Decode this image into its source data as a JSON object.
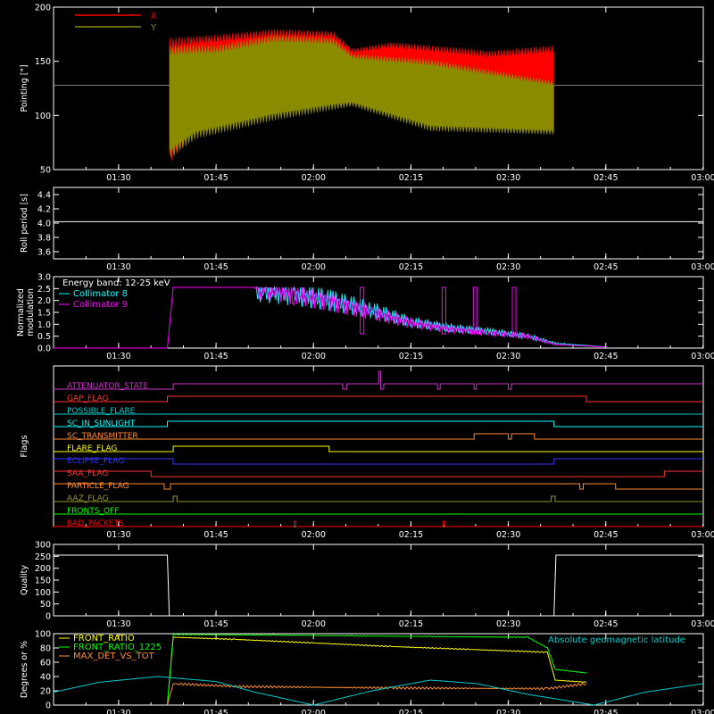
{
  "chart_data": [
    {
      "type": "line",
      "ylabel": "Pointing [\"]",
      "ylim": [
        50,
        200
      ],
      "yticks": [
        "50",
        "100",
        "150",
        "200"
      ],
      "x_range": [
        "01:20",
        "03:00"
      ],
      "data_span": [
        "01:38",
        "02:37"
      ],
      "reference_level": 128,
      "series": [
        {
          "name": "X",
          "color": "#ff0000",
          "upper_envelope": [
            [
              1.63,
              172
            ],
            [
              1.75,
              175
            ],
            [
              1.9,
              180
            ],
            [
              2.05,
              178
            ],
            [
              2.1,
              162
            ],
            [
              2.2,
              168
            ],
            [
              2.3,
              165
            ],
            [
              2.4,
              162
            ],
            [
              2.45,
              160
            ],
            [
              2.617,
              165
            ]
          ],
          "lower_envelope": [
            [
              1.63,
              55
            ],
            [
              1.7,
              88
            ],
            [
              1.9,
              105
            ],
            [
              2.1,
              115
            ],
            [
              2.3,
              98
            ],
            [
              2.45,
              88
            ],
            [
              2.617,
              90
            ]
          ]
        },
        {
          "name": "Y",
          "color": "#8b8b00",
          "upper_envelope": [
            [
              1.63,
              165
            ],
            [
              1.75,
              165
            ],
            [
              1.9,
              175
            ],
            [
              2.05,
              172
            ],
            [
              2.1,
              157
            ],
            [
              2.3,
              152
            ],
            [
              2.617,
              132
            ]
          ],
          "lower_envelope": [
            [
              1.63,
              60
            ],
            [
              1.7,
              78
            ],
            [
              1.9,
              95
            ],
            [
              2.1,
              108
            ],
            [
              2.3,
              85
            ],
            [
              2.617,
              82
            ]
          ]
        }
      ]
    },
    {
      "type": "line",
      "ylabel": "Roll period [s]",
      "ylim": [
        3.5,
        4.5
      ],
      "yticks": [
        "3.6",
        "3.8",
        "4.0",
        "4.2",
        "4.4"
      ],
      "series": [
        {
          "name": "",
          "color": "#ffffff",
          "points": [
            [
              1.333,
              4.02
            ],
            [
              3.0,
              4.02
            ]
          ]
        }
      ]
    },
    {
      "type": "line",
      "ylabel": "Normalized modulation",
      "ylim": [
        0,
        3
      ],
      "yticks": [
        "0.0",
        "0.5",
        "1.0",
        "1.5",
        "2.0",
        "2.5",
        "3.0"
      ],
      "legend_title": "Energy band: 12-25 keV",
      "series": [
        {
          "name": "Collimator 8",
          "color": "#00ffff",
          "points": [
            [
              1.85,
              2.5
            ],
            [
              1.95,
              2.3
            ],
            [
              2.05,
              2.0
            ],
            [
              2.15,
              1.6
            ],
            [
              2.25,
              1.1
            ],
            [
              2.35,
              0.85
            ],
            [
              2.45,
              0.7
            ],
            [
              2.55,
              0.5
            ],
            [
              2.62,
              0.2
            ],
            [
              2.75,
              0.05
            ]
          ]
        },
        {
          "name": "Collimator 9",
          "color": "#ff00ff",
          "points": [
            [
              1.333,
              0.0
            ],
            [
              1.625,
              0.0
            ],
            [
              1.64,
              2.55
            ],
            [
              1.9,
              2.55
            ],
            [
              1.95,
              2.3
            ],
            [
              2.05,
              1.9
            ],
            [
              2.15,
              1.5
            ],
            [
              2.25,
              1.05
            ],
            [
              2.35,
              0.8
            ],
            [
              2.45,
              0.65
            ],
            [
              2.55,
              0.5
            ],
            [
              2.62,
              0.15
            ],
            [
              2.75,
              0.05
            ]
          ]
        }
      ]
    },
    {
      "type": "line",
      "ylabel": "Flags",
      "flags": [
        {
          "label": "ATTENUATOR_STATE",
          "color": "#cc33cc",
          "steps": [
            [
              1.333,
              0
            ],
            [
              1.64,
              1
            ],
            [
              2.075,
              0
            ],
            [
              2.085,
              1
            ],
            [
              2.167,
              2
            ],
            [
              2.172,
              0
            ],
            [
              2.18,
              1
            ],
            [
              2.318,
              0
            ],
            [
              2.325,
              1
            ],
            [
              2.412,
              0
            ],
            [
              2.418,
              1
            ],
            [
              2.5,
              0
            ],
            [
              2.508,
              1
            ]
          ]
        },
        {
          "label": "GAP_FLAG",
          "color": "#ff3333",
          "steps": [
            [
              1.333,
              0
            ],
            [
              1.625,
              1
            ],
            [
              2.7,
              0
            ]
          ]
        },
        {
          "label": "POSSIBLE_FLARE",
          "color": "#00cccc",
          "steps": [
            [
              1.333,
              0
            ]
          ]
        },
        {
          "label": "SC_IN_SUNLIGHT",
          "color": "#00ffff",
          "steps": [
            [
              1.333,
              0
            ],
            [
              1.625,
              1
            ],
            [
              2.617,
              0
            ]
          ]
        },
        {
          "label": "SC_TRANSMITTER",
          "color": "#ff8c33",
          "steps": [
            [
              1.333,
              0
            ],
            [
              2.412,
              1
            ],
            [
              2.5,
              0
            ],
            [
              2.508,
              1
            ],
            [
              2.567,
              0
            ]
          ]
        },
        {
          "label": "FLARE_FLAG",
          "color": "#ffff00",
          "steps": [
            [
              1.333,
              0
            ],
            [
              1.64,
              1
            ],
            [
              2.04,
              0
            ]
          ]
        },
        {
          "label": "ECLIPSE_FLAG",
          "color": "#3333ff",
          "steps": [
            [
              1.333,
              1
            ],
            [
              1.64,
              0
            ],
            [
              2.617,
              1
            ]
          ]
        },
        {
          "label": "SAA_FLAG",
          "color": "#ff3333",
          "steps": [
            [
              1.333,
              1
            ],
            [
              1.583,
              0
            ],
            [
              2.9,
              1
            ]
          ]
        },
        {
          "label": "PARTICLE_FLAG",
          "color": "#ff8c33",
          "steps": [
            [
              1.333,
              1
            ],
            [
              1.617,
              0
            ],
            [
              1.633,
              1
            ],
            [
              2.683,
              0
            ],
            [
              2.692,
              1
            ],
            [
              2.775,
              0
            ]
          ]
        },
        {
          "label": "AAZ_FLAG",
          "color": "#999933",
          "steps": [
            [
              1.333,
              0
            ],
            [
              1.64,
              1
            ],
            [
              1.65,
              0
            ],
            [
              2.61,
              1
            ],
            [
              2.62,
              0
            ]
          ]
        },
        {
          "label": "FRONTS_OFF",
          "color": "#00ff00",
          "steps": [
            [
              1.333,
              0
            ]
          ]
        },
        {
          "label": "BAD_PACKETS",
          "color": "#ff0000",
          "steps": [
            [
              1.333,
              0
            ],
            [
              1.95,
              1
            ],
            [
              1.955,
              0
            ],
            [
              2.333,
              1
            ],
            [
              2.338,
              0
            ]
          ]
        }
      ]
    },
    {
      "type": "line",
      "ylabel": "Quality",
      "ylim": [
        0,
        300
      ],
      "yticks": [
        "0",
        "50",
        "100",
        "150",
        "200",
        "250",
        "300"
      ],
      "series": [
        {
          "name": "",
          "color": "#ffffff",
          "points": [
            [
              1.333,
              255
            ],
            [
              1.625,
              255
            ],
            [
              1.63,
              0
            ],
            [
              2.617,
              0
            ],
            [
              2.622,
              255
            ],
            [
              3.0,
              255
            ]
          ]
        }
      ]
    },
    {
      "type": "line",
      "ylabel": "Degrees or %",
      "ylim": [
        0,
        100
      ],
      "yticks": [
        "0",
        "20",
        "40",
        "60",
        "80",
        "100"
      ],
      "series": [
        {
          "name": "FRONT_RATIO",
          "color": "#ffff00",
          "points": [
            [
              1.625,
              0
            ],
            [
              1.64,
              95
            ],
            [
              1.8,
              92
            ],
            [
              2.0,
              87
            ],
            [
              2.2,
              82
            ],
            [
              2.4,
              78
            ],
            [
              2.6,
              74
            ],
            [
              2.62,
              35
            ],
            [
              2.7,
              32
            ]
          ]
        },
        {
          "name": "FRONT_RATIO_1225",
          "color": "#00ff00",
          "points": [
            [
              1.625,
              0
            ],
            [
              1.64,
              99
            ],
            [
              1.9,
              98
            ],
            [
              2.1,
              97
            ],
            [
              2.3,
              96
            ],
            [
              2.55,
              95
            ],
            [
              2.6,
              80
            ],
            [
              2.62,
              50
            ],
            [
              2.7,
              45
            ]
          ]
        },
        {
          "name": "MAX_DET_VS_TOT",
          "color": "#ff8c33",
          "points": [
            [
              1.625,
              0
            ],
            [
              1.64,
              30
            ],
            [
              1.8,
              26
            ],
            [
              2.2,
              24
            ],
            [
              2.6,
              23
            ],
            [
              2.7,
              30
            ]
          ]
        },
        {
          "name": "Absolute geomagnetic latitude",
          "color": "#00cccc",
          "points": [
            [
              1.333,
              18
            ],
            [
              1.45,
              32
            ],
            [
              1.6,
              40
            ],
            [
              1.75,
              33
            ],
            [
              1.85,
              18
            ],
            [
              2.0,
              0
            ],
            [
              2.15,
              20
            ],
            [
              2.3,
              35
            ],
            [
              2.42,
              30
            ],
            [
              2.55,
              15
            ],
            [
              2.72,
              0
            ],
            [
              2.85,
              18
            ],
            [
              3.0,
              30
            ]
          ]
        }
      ]
    }
  ],
  "x_axis": {
    "range": [
      1.333,
      3.0
    ],
    "ticks": [
      "01:30",
      "01:45",
      "02:00",
      "02:15",
      "02:30",
      "02:45",
      "03:00"
    ],
    "tick_values": [
      1.5,
      1.75,
      2.0,
      2.25,
      2.5,
      2.75,
      3.0
    ]
  }
}
